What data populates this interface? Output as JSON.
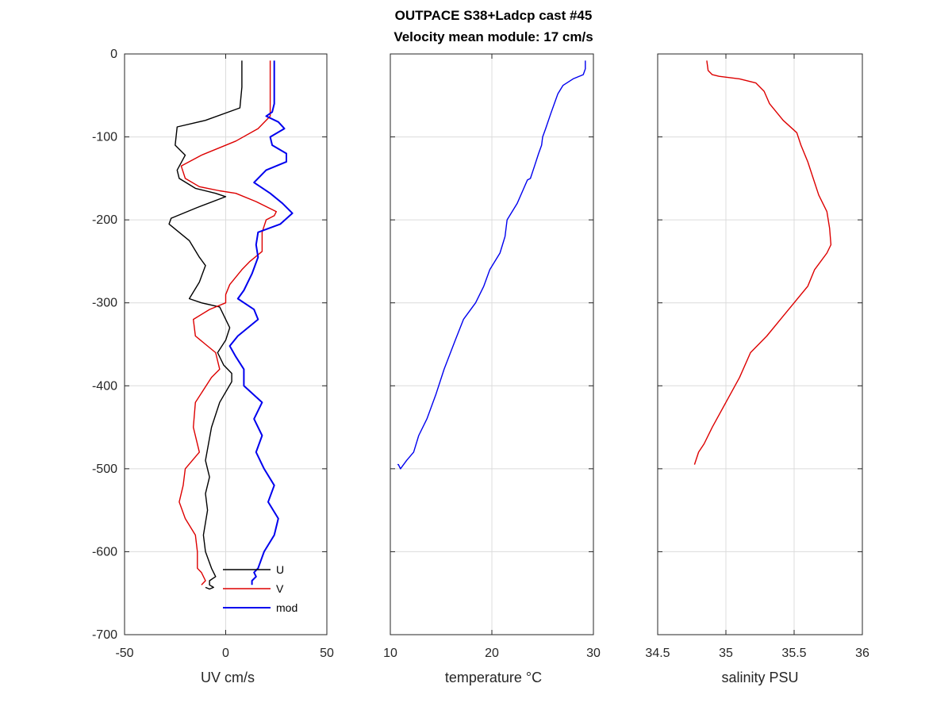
{
  "figure": {
    "title_line1": "OUTPACE S38+Ladcp cast #45",
    "title_line2": "Velocity mean module:  17 cm/s",
    "background": "#ffffff"
  },
  "chart_data": [
    {
      "type": "line",
      "xlabel": "UV cm/s",
      "ylabel": "",
      "xlim": [
        -50,
        50
      ],
      "ylim": [
        -700,
        0
      ],
      "xticks": [
        "-50",
        "0",
        "50"
      ],
      "yticks": [
        "0",
        "-100",
        "-200",
        "-300",
        "-400",
        "-500",
        "-600",
        "-700"
      ],
      "grid": true,
      "legend_position": "bottom-right",
      "series": [
        {
          "name": "U",
          "color": "#000000",
          "x": [
            8,
            8,
            7,
            -10,
            -24,
            -25,
            -20,
            -24,
            -23,
            -15,
            -5,
            0,
            -14,
            -27,
            -28,
            -18,
            -13,
            -10,
            -13,
            -18,
            -12,
            -3,
            0,
            2,
            0,
            -4,
            -1,
            3,
            3,
            -3,
            -7,
            -10,
            -8,
            -10,
            -9,
            -11,
            -10,
            -7,
            -5,
            -8,
            -8,
            -6,
            -8,
            -10
          ],
          "y": [
            -8,
            -40,
            -65,
            -80,
            -88,
            -110,
            -122,
            -140,
            -150,
            -162,
            -168,
            -172,
            -185,
            -198,
            -205,
            -225,
            -245,
            -255,
            -275,
            -295,
            -300,
            -305,
            -320,
            -330,
            -345,
            -360,
            -375,
            -385,
            -395,
            -420,
            -450,
            -490,
            -510,
            -530,
            -550,
            -580,
            -600,
            -620,
            -630,
            -635,
            -640,
            -643,
            -645,
            -643
          ]
        },
        {
          "name": "V",
          "color": "#dd0000",
          "x": [
            22,
            22,
            22,
            22,
            16,
            5,
            -12,
            -22,
            -20,
            -13,
            -3,
            5,
            15,
            25,
            24,
            20,
            18,
            18,
            12,
            8,
            2,
            0,
            0,
            -8,
            -16,
            -15,
            -10,
            -5,
            -3,
            -7,
            -15,
            -16,
            -13,
            -20,
            -21,
            -23,
            -20,
            -15,
            -14,
            -14,
            -12,
            -10,
            -12
          ],
          "y": [
            -8,
            -40,
            -60,
            -75,
            -90,
            -105,
            -122,
            -135,
            -150,
            -160,
            -165,
            -168,
            -178,
            -190,
            -195,
            -200,
            -215,
            -238,
            -250,
            -260,
            -278,
            -290,
            -300,
            -308,
            -320,
            -340,
            -350,
            -360,
            -380,
            -390,
            -420,
            -450,
            -480,
            -500,
            -520,
            -540,
            -560,
            -580,
            -600,
            -620,
            -625,
            -635,
            -640
          ]
        },
        {
          "name": "mod",
          "color": "#0000ee",
          "x": [
            24,
            24,
            24,
            23,
            20,
            26,
            29,
            22,
            23,
            30,
            30,
            20,
            14,
            22,
            28,
            33,
            27,
            16,
            15,
            16,
            13,
            9,
            6,
            14,
            16,
            6,
            2,
            5,
            9,
            9,
            18,
            14,
            18,
            15,
            19,
            24,
            21,
            26,
            24,
            19,
            16,
            14,
            15,
            13,
            13
          ],
          "y": [
            -8,
            -40,
            -60,
            -70,
            -75,
            -82,
            -90,
            -100,
            -110,
            -120,
            -130,
            -140,
            -155,
            -168,
            -180,
            -192,
            -205,
            -215,
            -230,
            -245,
            -265,
            -285,
            -295,
            -308,
            -320,
            -340,
            -352,
            -365,
            -380,
            -400,
            -420,
            -440,
            -460,
            -480,
            -500,
            -520,
            -540,
            -560,
            -580,
            -600,
            -620,
            -625,
            -630,
            -635,
            -640
          ]
        }
      ]
    },
    {
      "type": "line",
      "xlabel": "temperature °C",
      "ylabel": "",
      "xlim": [
        10,
        30
      ],
      "ylim": [
        -700,
        0
      ],
      "xticks": [
        "10",
        "20",
        "30"
      ],
      "grid": true,
      "series": [
        {
          "color": "#0000ee",
          "x": [
            29.2,
            29.2,
            29.0,
            28.0,
            27.0,
            26.5,
            25.8,
            25.3,
            25.0,
            24.9,
            24.6,
            24.2,
            23.8,
            23.5,
            22.5,
            21.5,
            21.3,
            20.8,
            19.8,
            19.2,
            18.4,
            17.2,
            16.4,
            15.3,
            14.5,
            13.6,
            12.8,
            12.3,
            11.6,
            11.0,
            10.8,
            10.7
          ],
          "y": [
            -8,
            -18,
            -25,
            -30,
            -38,
            -48,
            -72,
            -90,
            -100,
            -110,
            -120,
            -135,
            -150,
            -152,
            -180,
            -200,
            -220,
            -240,
            -260,
            -280,
            -300,
            -320,
            -345,
            -380,
            -410,
            -440,
            -460,
            -480,
            -490,
            -500,
            -495,
            -495
          ]
        }
      ]
    },
    {
      "type": "line",
      "xlabel": "salinity PSU",
      "ylabel": "",
      "xlim": [
        34.5,
        36
      ],
      "ylim": [
        -700,
        0
      ],
      "xticks": [
        "34.5",
        "35",
        "35.5",
        "36"
      ],
      "grid": true,
      "series": [
        {
          "color": "#dd0000",
          "x": [
            34.86,
            34.87,
            34.9,
            34.95,
            35.1,
            35.22,
            35.28,
            35.32,
            35.42,
            35.52,
            35.55,
            35.6,
            35.64,
            35.68,
            35.74,
            35.76,
            35.77,
            35.74,
            35.65,
            35.6,
            35.5,
            35.4,
            35.3,
            35.18,
            35.1,
            35.0,
            34.9,
            34.84,
            34.8,
            34.77
          ],
          "y": [
            -8,
            -20,
            -25,
            -27,
            -30,
            -35,
            -45,
            -60,
            -80,
            -95,
            -110,
            -130,
            -150,
            -170,
            -190,
            -210,
            -230,
            -240,
            -260,
            -280,
            -300,
            -320,
            -340,
            -360,
            -390,
            -420,
            -450,
            -470,
            -480,
            -495
          ]
        }
      ]
    }
  ]
}
